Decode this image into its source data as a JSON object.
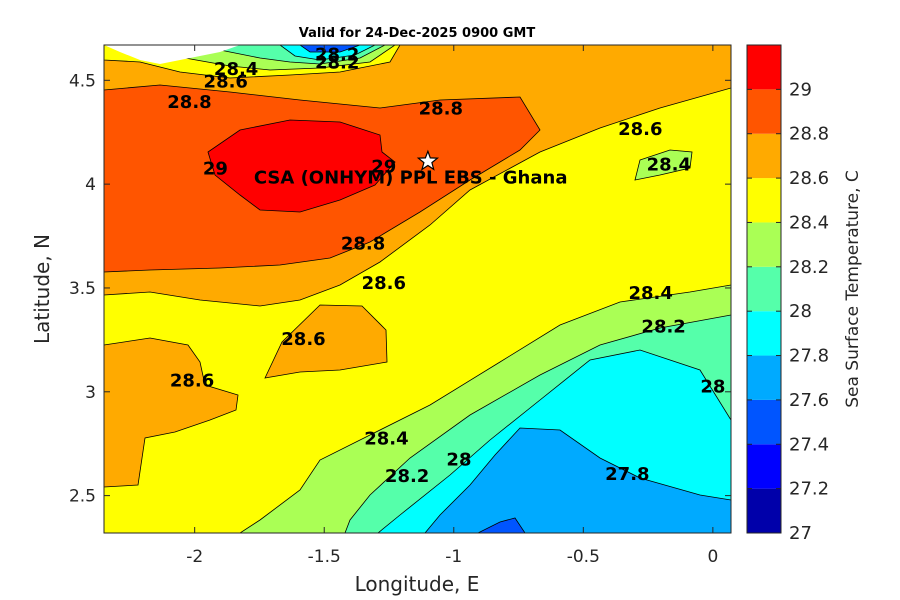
{
  "chart_data": {
    "type": "contour",
    "title": "Valid for 24-Dec-2025 0900 GMT",
    "xlabel": "Longitude, E",
    "ylabel": "Latitude, N",
    "colorbar_label": "Sea Surface Temperature, C",
    "xlim": [
      -2.35,
      0.07
    ],
    "ylim": [
      2.32,
      4.67
    ],
    "xticks": [
      -2,
      -1.5,
      -1,
      -0.5,
      0
    ],
    "xtick_labels": [
      "-2",
      "-1.5",
      "-1",
      "-0.5",
      "0"
    ],
    "yticks": [
      2.5,
      3,
      3.5,
      4,
      4.5
    ],
    "ytick_labels": [
      "2.5",
      "3",
      "3.5",
      "4",
      "4.5"
    ],
    "levels": [
      27,
      27.2,
      27.4,
      27.6,
      27.8,
      28,
      28.2,
      28.4,
      28.6,
      28.8,
      29
    ],
    "level_labels": [
      "27",
      "27.2",
      "27.4",
      "27.6",
      "27.8",
      "28",
      "28.2",
      "28.4",
      "28.6",
      "28.8",
      "29"
    ],
    "level_colors": [
      "#0000aa",
      "#0000ff",
      "#0055ff",
      "#00aaff",
      "#00ffff",
      "#55ffaa",
      "#aaff55",
      "#ffff00",
      "#ffaa00",
      "#ff5500",
      "#ff0000"
    ],
    "site": {
      "name": "CSA (ONHYM) PPL EBS  - Ghana",
      "lon": -1.1,
      "lat": 4.11,
      "marker": "star"
    },
    "contour_labels": [
      {
        "text": "28.2",
        "lon": -1.45,
        "lat": 4.62
      },
      {
        "text": "28.2",
        "lon": -1.45,
        "lat": 4.58
      },
      {
        "text": "28.4",
        "lon": -1.84,
        "lat": 4.55
      },
      {
        "text": "28.6",
        "lon": -1.88,
        "lat": 4.49
      },
      {
        "text": "28.8",
        "lon": -2.02,
        "lat": 4.39
      },
      {
        "text": "28.8",
        "lon": -1.05,
        "lat": 4.36
      },
      {
        "text": "28.6",
        "lon": -0.28,
        "lat": 4.26
      },
      {
        "text": "28.4",
        "lon": -0.17,
        "lat": 4.09
      },
      {
        "text": "29",
        "lon": -1.92,
        "lat": 4.07
      },
      {
        "text": "29",
        "lon": -1.27,
        "lat": 4.08
      },
      {
        "text": "28.8",
        "lon": -1.35,
        "lat": 3.71
      },
      {
        "text": "28.6",
        "lon": -1.27,
        "lat": 3.52
      },
      {
        "text": "28.6",
        "lon": -1.58,
        "lat": 3.25
      },
      {
        "text": "28.6",
        "lon": -2.01,
        "lat": 3.05
      },
      {
        "text": "28.4",
        "lon": -0.24,
        "lat": 3.47
      },
      {
        "text": "28.2",
        "lon": -0.19,
        "lat": 3.31
      },
      {
        "text": "28",
        "lon": 0.0,
        "lat": 3.02
      },
      {
        "text": "28.4",
        "lon": -1.26,
        "lat": 2.77
      },
      {
        "text": "28.2",
        "lon": -1.18,
        "lat": 2.59
      },
      {
        "text": "28",
        "lon": -0.98,
        "lat": 2.67
      },
      {
        "text": "27.8",
        "lon": -0.33,
        "lat": 2.6
      }
    ]
  }
}
